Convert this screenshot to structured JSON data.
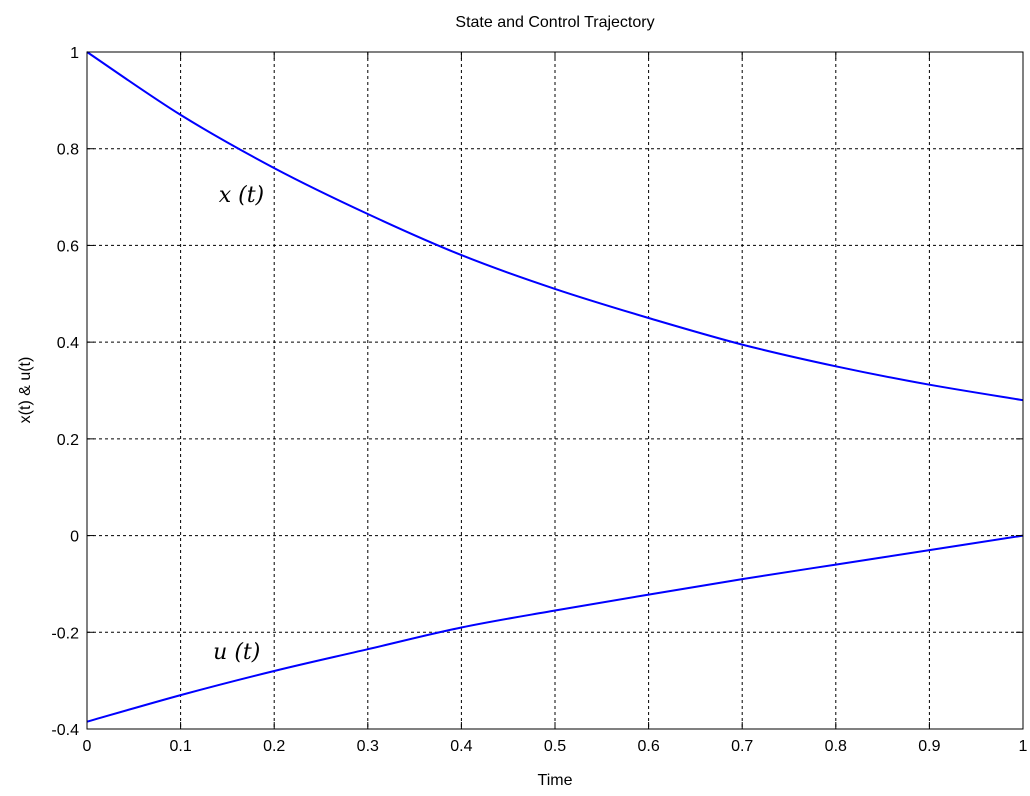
{
  "chart_data": {
    "type": "line",
    "title": "State and Control Trajectory",
    "xlabel": "Time",
    "ylabel": "x(t) & u(t)",
    "xlim": [
      0,
      1
    ],
    "ylim": [
      -0.4,
      1
    ],
    "xticks": [
      0,
      0.1,
      0.2,
      0.3,
      0.4,
      0.5,
      0.6,
      0.7,
      0.8,
      0.9,
      1
    ],
    "xtick_labels": [
      "0",
      "0.1",
      "0.2",
      "0.3",
      "0.4",
      "0.5",
      "0.6",
      "0.7",
      "0.8",
      "0.9",
      "1"
    ],
    "yticks": [
      -0.4,
      -0.2,
      0,
      0.2,
      0.4,
      0.6,
      0.8,
      1
    ],
    "ytick_labels": [
      "-0.4",
      "-0.2",
      "0",
      "0.2",
      "0.4",
      "0.6",
      "0.8",
      "1"
    ],
    "grid": true,
    "line_color": "#0000ff",
    "x": [
      0,
      0.1,
      0.2,
      0.3,
      0.4,
      0.5,
      0.6,
      0.7,
      0.8,
      0.9,
      1
    ],
    "series": [
      {
        "label": "x (t)",
        "values": [
          1.0,
          0.87,
          0.76,
          0.665,
          0.58,
          0.51,
          0.45,
          0.395,
          0.35,
          0.312,
          0.28
        ]
      },
      {
        "label": "u (t)",
        "values": [
          -0.385,
          -0.33,
          -0.28,
          -0.235,
          -0.19,
          -0.155,
          -0.122,
          -0.09,
          -0.06,
          -0.03,
          0.0
        ]
      }
    ]
  }
}
